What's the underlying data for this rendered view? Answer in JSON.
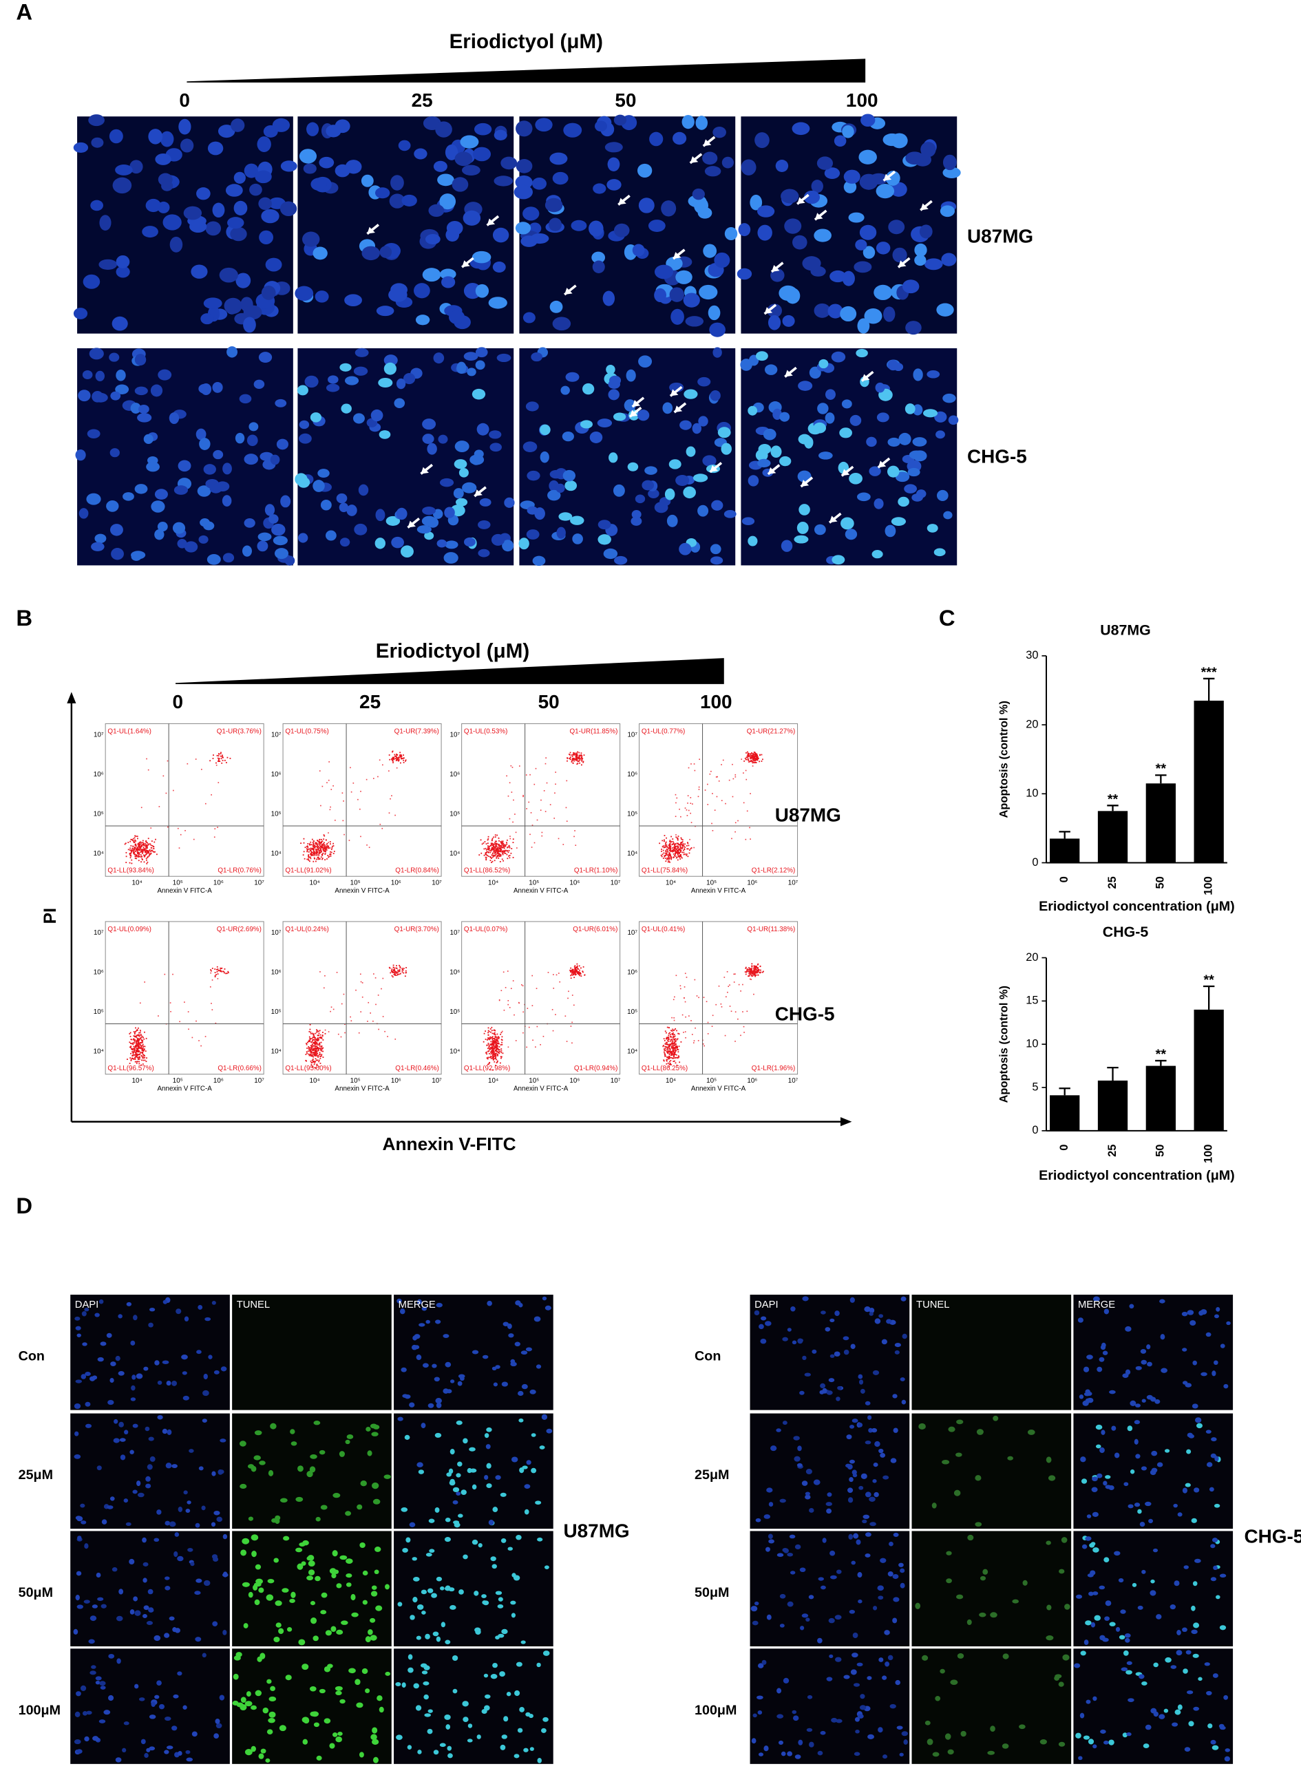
{
  "panel_a": {
    "label": "A",
    "title": "Eriodictyol (μM)",
    "doses": [
      "0",
      "25",
      "50",
      "100"
    ],
    "cell_lines": [
      "U87MG",
      "CHG-5"
    ]
  },
  "panel_b": {
    "label": "B",
    "title": "Eriodictyol (μM)",
    "doses": [
      "0",
      "25",
      "50",
      "100"
    ],
    "cell_lines": [
      "U87MG",
      "CHG-5"
    ],
    "y_label": "PI",
    "x_label": "Annexin V-FITC",
    "plot_x_label": "Annexin V FITC-A",
    "plot_x_ticks": [
      "10⁴",
      "10⁵",
      "10⁶",
      "10⁷"
    ],
    "plot_y_ticks": [
      "10⁷",
      "10⁶",
      "10⁵",
      "10⁴"
    ],
    "quadrants": [
      [
        [
          "Q1-UL(1.64%)",
          "Q1-UR(3.76%)",
          "Q1-LL(93.84%)",
          "Q1-LR(0.76%)"
        ],
        [
          "Q1-UL(0.75%)",
          "Q1-UR(7.39%)",
          "Q1-LL(91.02%)",
          "Q1-LR(0.84%)"
        ],
        [
          "Q1-UL(0.53%)",
          "Q1-UR(11.85%)",
          "Q1-LL(86.52%)",
          "Q1-LR(1.10%)"
        ],
        [
          "Q1-UL(0.77%)",
          "Q1-UR(21.27%)",
          "Q1-LL(75.84%)",
          "Q1-LR(2.12%)"
        ]
      ],
      [
        [
          "Q1-UL(0.09%)",
          "Q1-UR(2.69%)",
          "Q1-LL(96.57%)",
          "Q1-LR(0.66%)"
        ],
        [
          "Q1-UL(0.24%)",
          "Q1-UR(3.70%)",
          "Q1-LL(95.60%)",
          "Q1-LR(0.46%)"
        ],
        [
          "Q1-UL(0.07%)",
          "Q1-UR(6.01%)",
          "Q1-LL(92.98%)",
          "Q1-LR(0.94%)"
        ],
        [
          "Q1-UL(0.41%)",
          "Q1-UR(11.38%)",
          "Q1-LL(86.25%)",
          "Q1-LR(1.96%)"
        ]
      ]
    ]
  },
  "panel_c": {
    "label": "C"
  },
  "chart_data": [
    {
      "type": "bar",
      "title": "U87MG",
      "x_label": "Eriodictyol concentration (μM)",
      "y_label": "Apoptosis (control %)",
      "categories": [
        "0",
        "25",
        "50",
        "100"
      ],
      "values": [
        3.5,
        7.5,
        11.5,
        23.5
      ],
      "errors": [
        1,
        0.8,
        1.2,
        3.2
      ],
      "significance": [
        null,
        "**",
        "**",
        "***"
      ],
      "color": "#000000",
      "ylim": [
        0,
        30
      ],
      "yticks": [
        0,
        10,
        20,
        30
      ]
    },
    {
      "type": "bar",
      "title": "CHG-5",
      "x_label": "Eriodictyol concentration (μM)",
      "y_label": "Apoptosis (control %)",
      "categories": [
        "0",
        "25",
        "50",
        "100"
      ],
      "values": [
        4.1,
        5.8,
        7.5,
        14
      ],
      "errors": [
        0.8,
        1.5,
        0.6,
        2.7
      ],
      "significance": [
        null,
        null,
        "**",
        "**"
      ],
      "color": "#000000",
      "ylim": [
        0,
        20
      ],
      "yticks": [
        0,
        5,
        10,
        15,
        20
      ]
    }
  ],
  "panel_d": {
    "label": "D",
    "columns": [
      "DAPI",
      "TUNEL",
      "MERGE"
    ],
    "rows": [
      "Con",
      "25μM",
      "50μM",
      "100μM"
    ],
    "cell_lines": [
      "U87MG",
      "CHG-5"
    ]
  }
}
